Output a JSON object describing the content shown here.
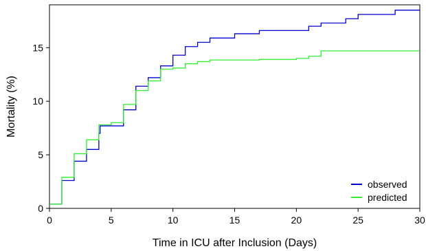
{
  "chart_data": {
    "type": "line",
    "step": true,
    "xlabel": "Time in ICU after Inclusion (Days)",
    "ylabel": "Mortality (%)",
    "xlim": [
      0,
      30
    ],
    "ylim": [
      0,
      19
    ],
    "xticks": [
      0,
      5,
      10,
      15,
      20,
      25,
      30
    ],
    "yticks": [
      0,
      5,
      10,
      15
    ],
    "grid": false,
    "legend_position": "bottom-right",
    "series": [
      {
        "name": "observed",
        "color": "#0000cc",
        "x": [
          0,
          1,
          2,
          3,
          4,
          4.1,
          5,
          6,
          7,
          8,
          9,
          10,
          10.1,
          11,
          12,
          13,
          15,
          17,
          21,
          22,
          24,
          25,
          28,
          30
        ],
        "y": [
          0.4,
          2.6,
          4.4,
          5.5,
          7.0,
          7.7,
          7.7,
          9.2,
          11.4,
          12.2,
          13.3,
          14.3,
          14.3,
          15.1,
          15.5,
          15.9,
          16.3,
          16.6,
          17.0,
          17.3,
          17.7,
          18.1,
          18.5,
          18.5
        ]
      },
      {
        "name": "predicted",
        "color": "#33ee33",
        "x": [
          0,
          1,
          2,
          3,
          4,
          5,
          6,
          7,
          8,
          9,
          10,
          11,
          12,
          13,
          17,
          20,
          21,
          22,
          30
        ],
        "y": [
          0.4,
          2.9,
          5.1,
          6.4,
          7.8,
          8.0,
          9.7,
          11.0,
          11.9,
          13.0,
          13.1,
          13.5,
          13.7,
          13.85,
          13.9,
          14.0,
          14.2,
          14.7,
          14.7
        ]
      }
    ]
  }
}
